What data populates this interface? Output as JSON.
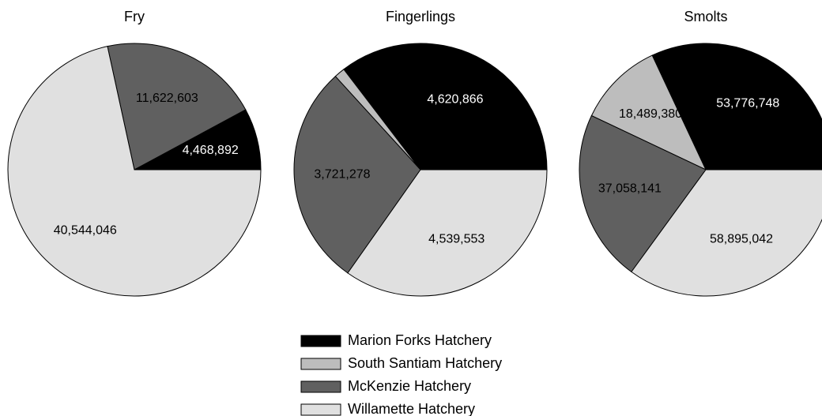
{
  "chart_data": [
    {
      "type": "pie",
      "title": "Fry",
      "categories": [
        "Marion Forks Hatchery",
        "McKenzie Hatchery",
        "Willamette Hatchery"
      ],
      "values": [
        4468892,
        11622603,
        40544046
      ],
      "value_labels": [
        "4,468,892",
        "11,622,603",
        "40,544,046"
      ],
      "colors": [
        "#000000",
        "#606060",
        "#e0e0e0"
      ]
    },
    {
      "type": "pie",
      "title": "Fingerlings",
      "categories": [
        "Marion Forks Hatchery",
        "South Santiam Hatchery",
        "McKenzie Hatchery",
        "Willamette Hatchery"
      ],
      "values": [
        4620866,
        180000,
        3721278,
        4539553
      ],
      "value_labels": [
        "4,620,866",
        null,
        "3,721,278",
        "4,539,553"
      ],
      "colors": [
        "#000000",
        "#bdbdbd",
        "#606060",
        "#e0e0e0"
      ]
    },
    {
      "type": "pie",
      "title": "Smolts",
      "categories": [
        "Marion Forks Hatchery",
        "South Santiam Hatchery",
        "McKenzie Hatchery",
        "Willamette Hatchery"
      ],
      "values": [
        53776748,
        18489380,
        37058141,
        58895042
      ],
      "value_labels": [
        "53,776,748",
        "18,489,380",
        "37,058,141",
        "58,895,042"
      ],
      "colors": [
        "#000000",
        "#bdbdbd",
        "#606060",
        "#e0e0e0"
      ]
    }
  ]
}
